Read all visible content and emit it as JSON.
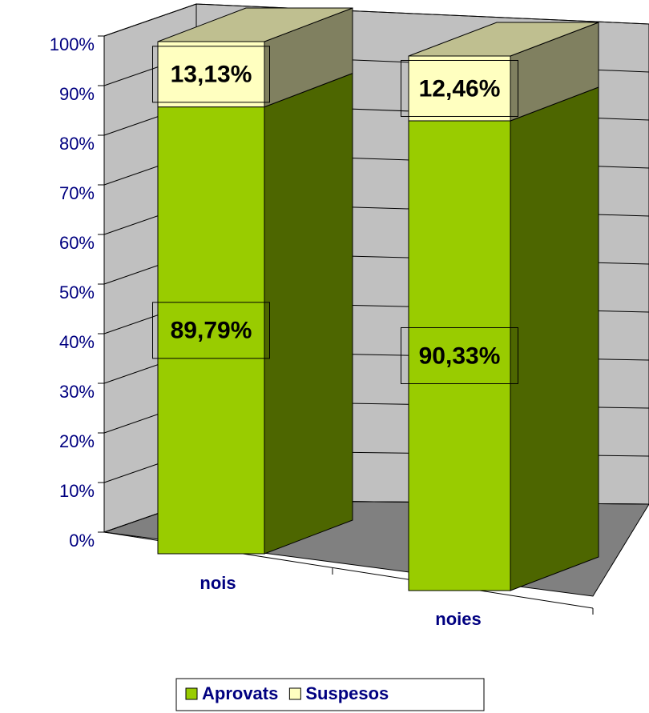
{
  "chart_data": {
    "type": "bar",
    "stacking": "percent",
    "categories": [
      "nois",
      "noies"
    ],
    "series": [
      {
        "name": "Aprovats",
        "color": "#99cc00",
        "values": [
          89.79,
          90.33
        ],
        "value_labels": [
          "89,79%",
          "90,33%"
        ]
      },
      {
        "name": "Suspesos",
        "color": "#ffffc0",
        "values": [
          13.13,
          12.46
        ],
        "value_labels": [
          "13,13%",
          "12,46%"
        ]
      }
    ],
    "ylim": [
      0,
      100
    ],
    "yticks": [
      {
        "value": 0,
        "label": "0%"
      },
      {
        "value": 10,
        "label": "10%"
      },
      {
        "value": 20,
        "label": "20%"
      },
      {
        "value": 30,
        "label": "30%"
      },
      {
        "value": 40,
        "label": "40%"
      },
      {
        "value": 50,
        "label": "50%"
      },
      {
        "value": 60,
        "label": "60%"
      },
      {
        "value": 70,
        "label": "70%"
      },
      {
        "value": 80,
        "label": "80%"
      },
      {
        "value": 90,
        "label": "90%"
      },
      {
        "value": 100,
        "label": "100%"
      }
    ],
    "grid": true,
    "legend": "bottom"
  }
}
